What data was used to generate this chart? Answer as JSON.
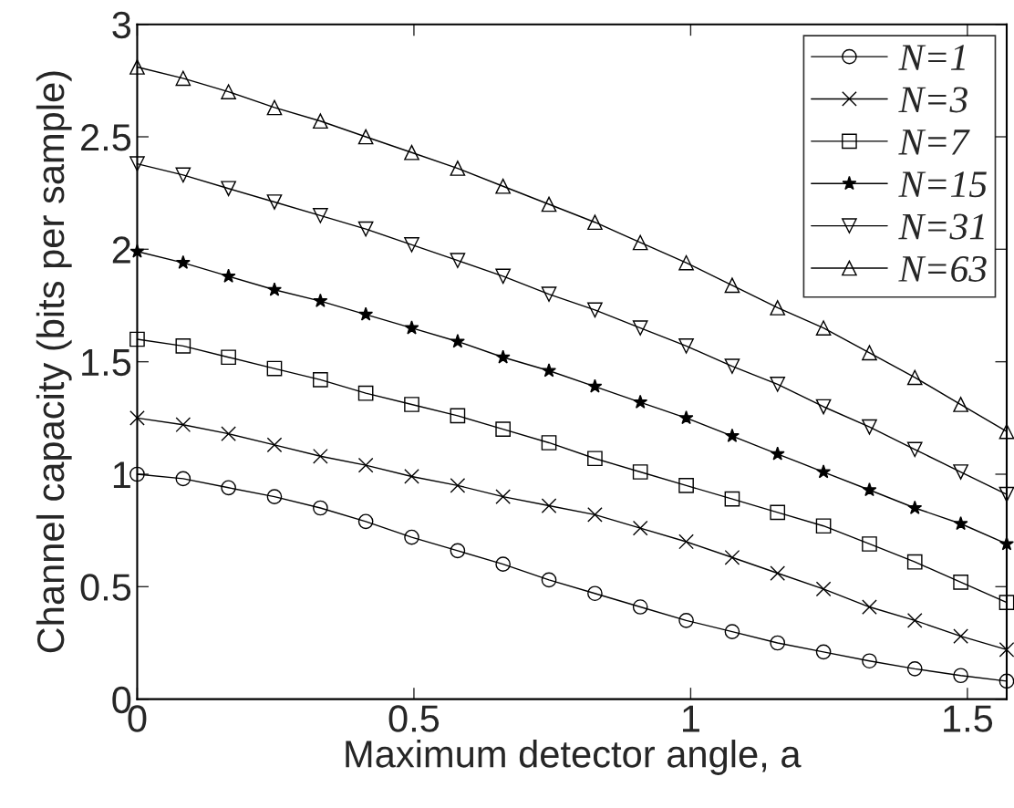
{
  "chart_data": {
    "type": "line",
    "xlabel": "Maximum detector angle, a",
    "ylabel": "Channel capacity (bits per sample)",
    "x": [
      0,
      0.083,
      0.165,
      0.248,
      0.331,
      0.413,
      0.496,
      0.579,
      0.661,
      0.744,
      0.827,
      0.909,
      0.992,
      1.075,
      1.157,
      1.24,
      1.323,
      1.405,
      1.488,
      1.571
    ],
    "xlim": [
      0,
      1.571
    ],
    "xticks": [
      0,
      0.5,
      1,
      1.5
    ],
    "ylim": [
      0,
      3
    ],
    "yticks": [
      0,
      0.5,
      1,
      1.5,
      2,
      2.5,
      3
    ],
    "legend": "top right",
    "line_style": "solid",
    "series": [
      {
        "name": "N=1",
        "color": "#000000",
        "marker": "circle",
        "values": [
          1.0,
          0.98,
          0.94,
          0.9,
          0.85,
          0.79,
          0.72,
          0.66,
          0.6,
          0.53,
          0.47,
          0.41,
          0.35,
          0.3,
          0.25,
          0.21,
          0.17,
          0.135,
          0.105,
          0.08
        ]
      },
      {
        "name": "N=3",
        "color": "#000000",
        "marker": "cross",
        "values": [
          1.25,
          1.22,
          1.18,
          1.13,
          1.08,
          1.04,
          0.99,
          0.95,
          0.9,
          0.86,
          0.82,
          0.76,
          0.7,
          0.63,
          0.56,
          0.49,
          0.41,
          0.35,
          0.28,
          0.22
        ]
      },
      {
        "name": "N=7",
        "color": "#000000",
        "marker": "square",
        "values": [
          1.6,
          1.57,
          1.52,
          1.47,
          1.42,
          1.36,
          1.31,
          1.26,
          1.2,
          1.14,
          1.07,
          1.01,
          0.95,
          0.89,
          0.83,
          0.77,
          0.69,
          0.61,
          0.52,
          0.43
        ]
      },
      {
        "name": "N=15",
        "color": "#000000",
        "marker": "star",
        "values": [
          1.99,
          1.94,
          1.88,
          1.82,
          1.77,
          1.71,
          1.65,
          1.59,
          1.52,
          1.46,
          1.39,
          1.32,
          1.25,
          1.17,
          1.09,
          1.01,
          0.93,
          0.85,
          0.78,
          0.69
        ]
      },
      {
        "name": "N=31",
        "color": "#000000",
        "marker": "triangle_down",
        "values": [
          2.38,
          2.33,
          2.27,
          2.21,
          2.15,
          2.09,
          2.02,
          1.95,
          1.88,
          1.8,
          1.73,
          1.65,
          1.57,
          1.48,
          1.4,
          1.3,
          1.21,
          1.11,
          1.01,
          0.91
        ]
      },
      {
        "name": "N=63",
        "color": "#000000",
        "marker": "triangle",
        "values": [
          2.81,
          2.76,
          2.7,
          2.63,
          2.57,
          2.5,
          2.43,
          2.36,
          2.28,
          2.2,
          2.12,
          2.03,
          1.94,
          1.84,
          1.74,
          1.65,
          1.54,
          1.43,
          1.31,
          1.19
        ]
      }
    ]
  }
}
